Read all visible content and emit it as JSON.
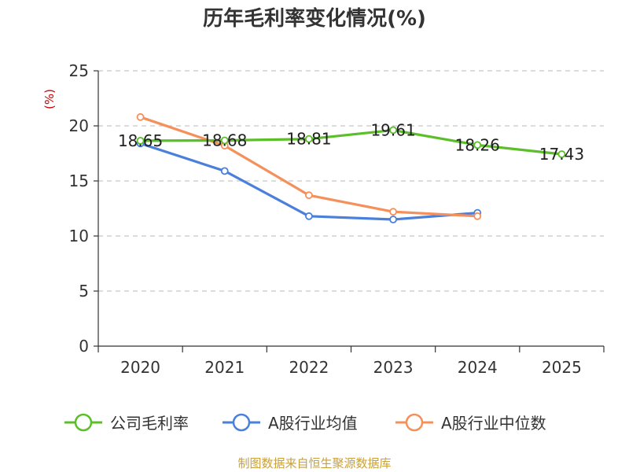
{
  "chart_data": {
    "type": "line",
    "title": "历年毛利率变化情况(%)",
    "ylabel": "(%)",
    "xlabel": "",
    "categories": [
      "2020",
      "2021",
      "2022",
      "2023",
      "2024",
      "2025"
    ],
    "ylim": [
      0,
      25
    ],
    "yticks": [
      0,
      5,
      10,
      15,
      20,
      25
    ],
    "grid": "horizontal-dashed",
    "legend_position": "bottom",
    "series": [
      {
        "name": "公司毛利率",
        "color": "#5cbf2a",
        "values": [
          18.65,
          18.68,
          18.81,
          19.61,
          18.26,
          17.43
        ],
        "labels": [
          "18.65",
          "18.68",
          "18.81",
          "19.61",
          "18.26",
          "17.43"
        ]
      },
      {
        "name": "A股行业均值",
        "color": "#4a7fdb",
        "values": [
          18.4,
          15.9,
          11.8,
          11.5,
          12.1,
          null
        ]
      },
      {
        "name": "A股行业中位数",
        "color": "#f5905a",
        "values": [
          20.8,
          18.2,
          13.7,
          12.2,
          11.8,
          null
        ]
      }
    ]
  },
  "source": "制图数据来自恒生聚源数据库"
}
